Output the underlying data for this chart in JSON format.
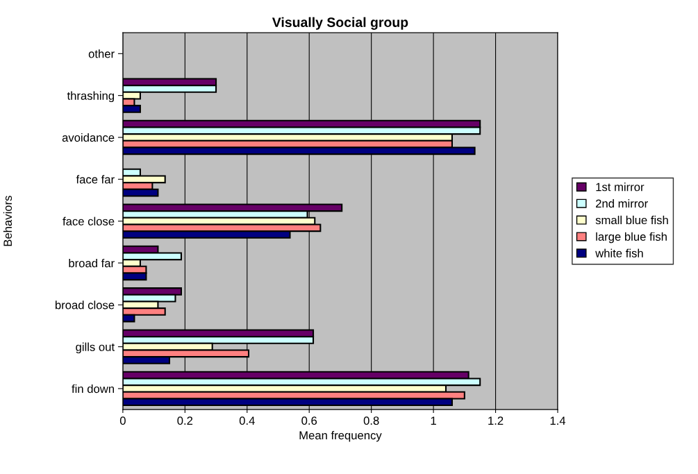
{
  "chart_data": {
    "type": "bar",
    "orientation": "horizontal",
    "title": "Visually Social group",
    "xlabel": "Mean frequency",
    "ylabel": "Behaviors",
    "categories": [
      "other",
      "thrashing",
      "avoidance",
      "face far",
      "face close",
      "broad far",
      "broad close",
      "gills out",
      "fin down"
    ],
    "series": [
      {
        "name": "1st mirror",
        "color": "#660066",
        "values": [
          0,
          0.3,
          1.15,
          0,
          0.705,
          0.113,
          0.188,
          0.613,
          1.113
        ]
      },
      {
        "name": "2nd mirror",
        "color": "#ccffff",
        "values": [
          0,
          0.3,
          1.15,
          0.056,
          0.594,
          0.188,
          0.169,
          0.613,
          1.15
        ]
      },
      {
        "name": "small blue fish",
        "color": "#ffffcc",
        "values": [
          0,
          0.056,
          1.06,
          0.136,
          0.618,
          0.056,
          0.113,
          0.288,
          1.04
        ]
      },
      {
        "name": "large blue fish",
        "color": "#ff8080",
        "values": [
          0,
          0.037,
          1.06,
          0.095,
          0.636,
          0.075,
          0.136,
          0.405,
          1.1
        ]
      },
      {
        "name": "white fish",
        "color": "#000080",
        "values": [
          0,
          0.056,
          1.133,
          0.113,
          0.538,
          0.075,
          0.037,
          0.15,
          1.06
        ]
      }
    ],
    "xlim": [
      0,
      1.4
    ],
    "xticks": [
      0,
      0.2,
      0.4,
      0.6,
      0.8,
      1,
      1.2,
      1.4
    ],
    "grid": "x",
    "legend": "right"
  }
}
